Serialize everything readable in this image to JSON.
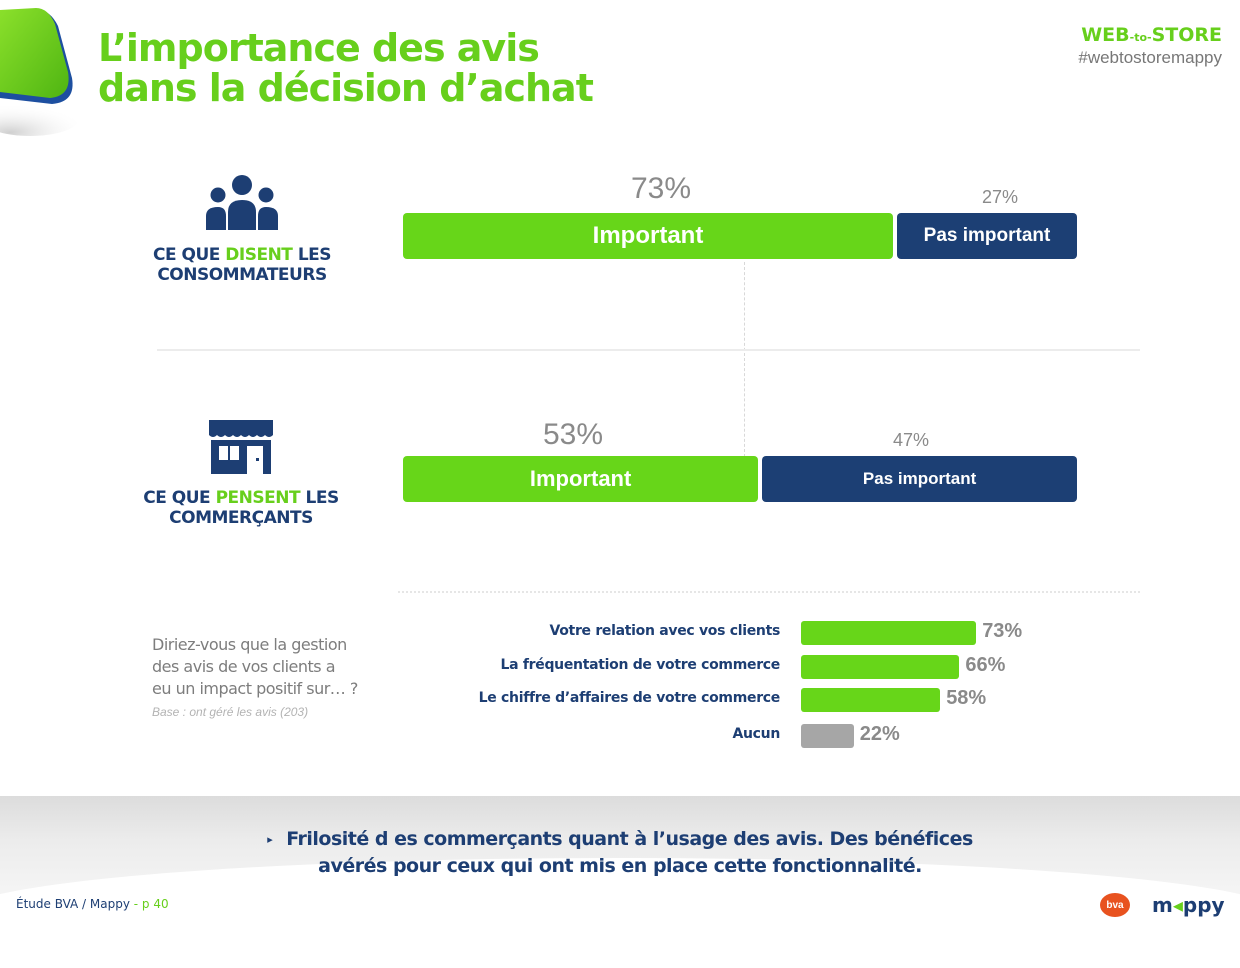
{
  "header": {
    "title_line1": "L’importance des avis",
    "title_line2": "dans la décision d’achat",
    "brand_web": "WEB",
    "brand_to": "-to-",
    "brand_store": "STORE",
    "hashtag": "#webtostoremappy"
  },
  "segments": [
    {
      "label_pre": "CE QUE ",
      "label_hl": "DISENT",
      "label_post": " LES",
      "label_line2": "CONSOMMATEURS",
      "icon": "people-group-icon",
      "important_pct_text": "73%",
      "important_label": "Important",
      "not_important_pct_text": "27%",
      "not_important_label": "Pas important"
    },
    {
      "label_pre": "CE QUE ",
      "label_hl": "PENSENT",
      "label_post": " LES",
      "label_line2": "COMMERÇANTS",
      "icon": "storefront-icon",
      "important_pct_text": "53%",
      "important_label": "Important",
      "not_important_pct_text": "47%",
      "not_important_label": "Pas important"
    }
  ],
  "question": {
    "line1": "Diriez-vous que la gestion",
    "line2": "des avis de vos clients a",
    "line3": "eu un impact positif sur… ?",
    "base": "Base : ont géré les avis (203)"
  },
  "chart_data": [
    {
      "type": "bar",
      "orientation": "horizontal-stacked",
      "categories": [
        "CE QUE DISENT LES CONSOMMATEURS",
        "CE QUE PENSENT LES COMMERÇANTS"
      ],
      "series": [
        {
          "name": "Important",
          "values": [
            73,
            53
          ],
          "color": "#67d619"
        },
        {
          "name": "Pas important",
          "values": [
            27,
            47
          ],
          "color": "#1c3f74"
        }
      ],
      "xlim": [
        0,
        100
      ]
    },
    {
      "type": "bar",
      "orientation": "horizontal",
      "categories": [
        "Votre relation avec vos clients",
        "La fréquentation de votre commerce",
        "Le chiffre d’affaires de votre commerce",
        "Aucun"
      ],
      "values": [
        73,
        66,
        58,
        22
      ],
      "value_labels": [
        "73%",
        "66%",
        "58%",
        "22%"
      ],
      "colors": [
        "#67d619",
        "#67d619",
        "#67d619",
        "#a6a6a6"
      ],
      "xlim": [
        0,
        100
      ]
    }
  ],
  "footer": {
    "line1": "Frilosité d es commerçants quant à l’usage des avis. Des bénéfices",
    "line2": "avérés pour ceux qui ont mis en place cette fonctionnalité.",
    "source": "Étude BVA / Mappy",
    "page": " - p 40",
    "bva": "bva",
    "mappy_m": "m",
    "mappy_arrow": "◂",
    "mappy_rest": "ppy"
  }
}
